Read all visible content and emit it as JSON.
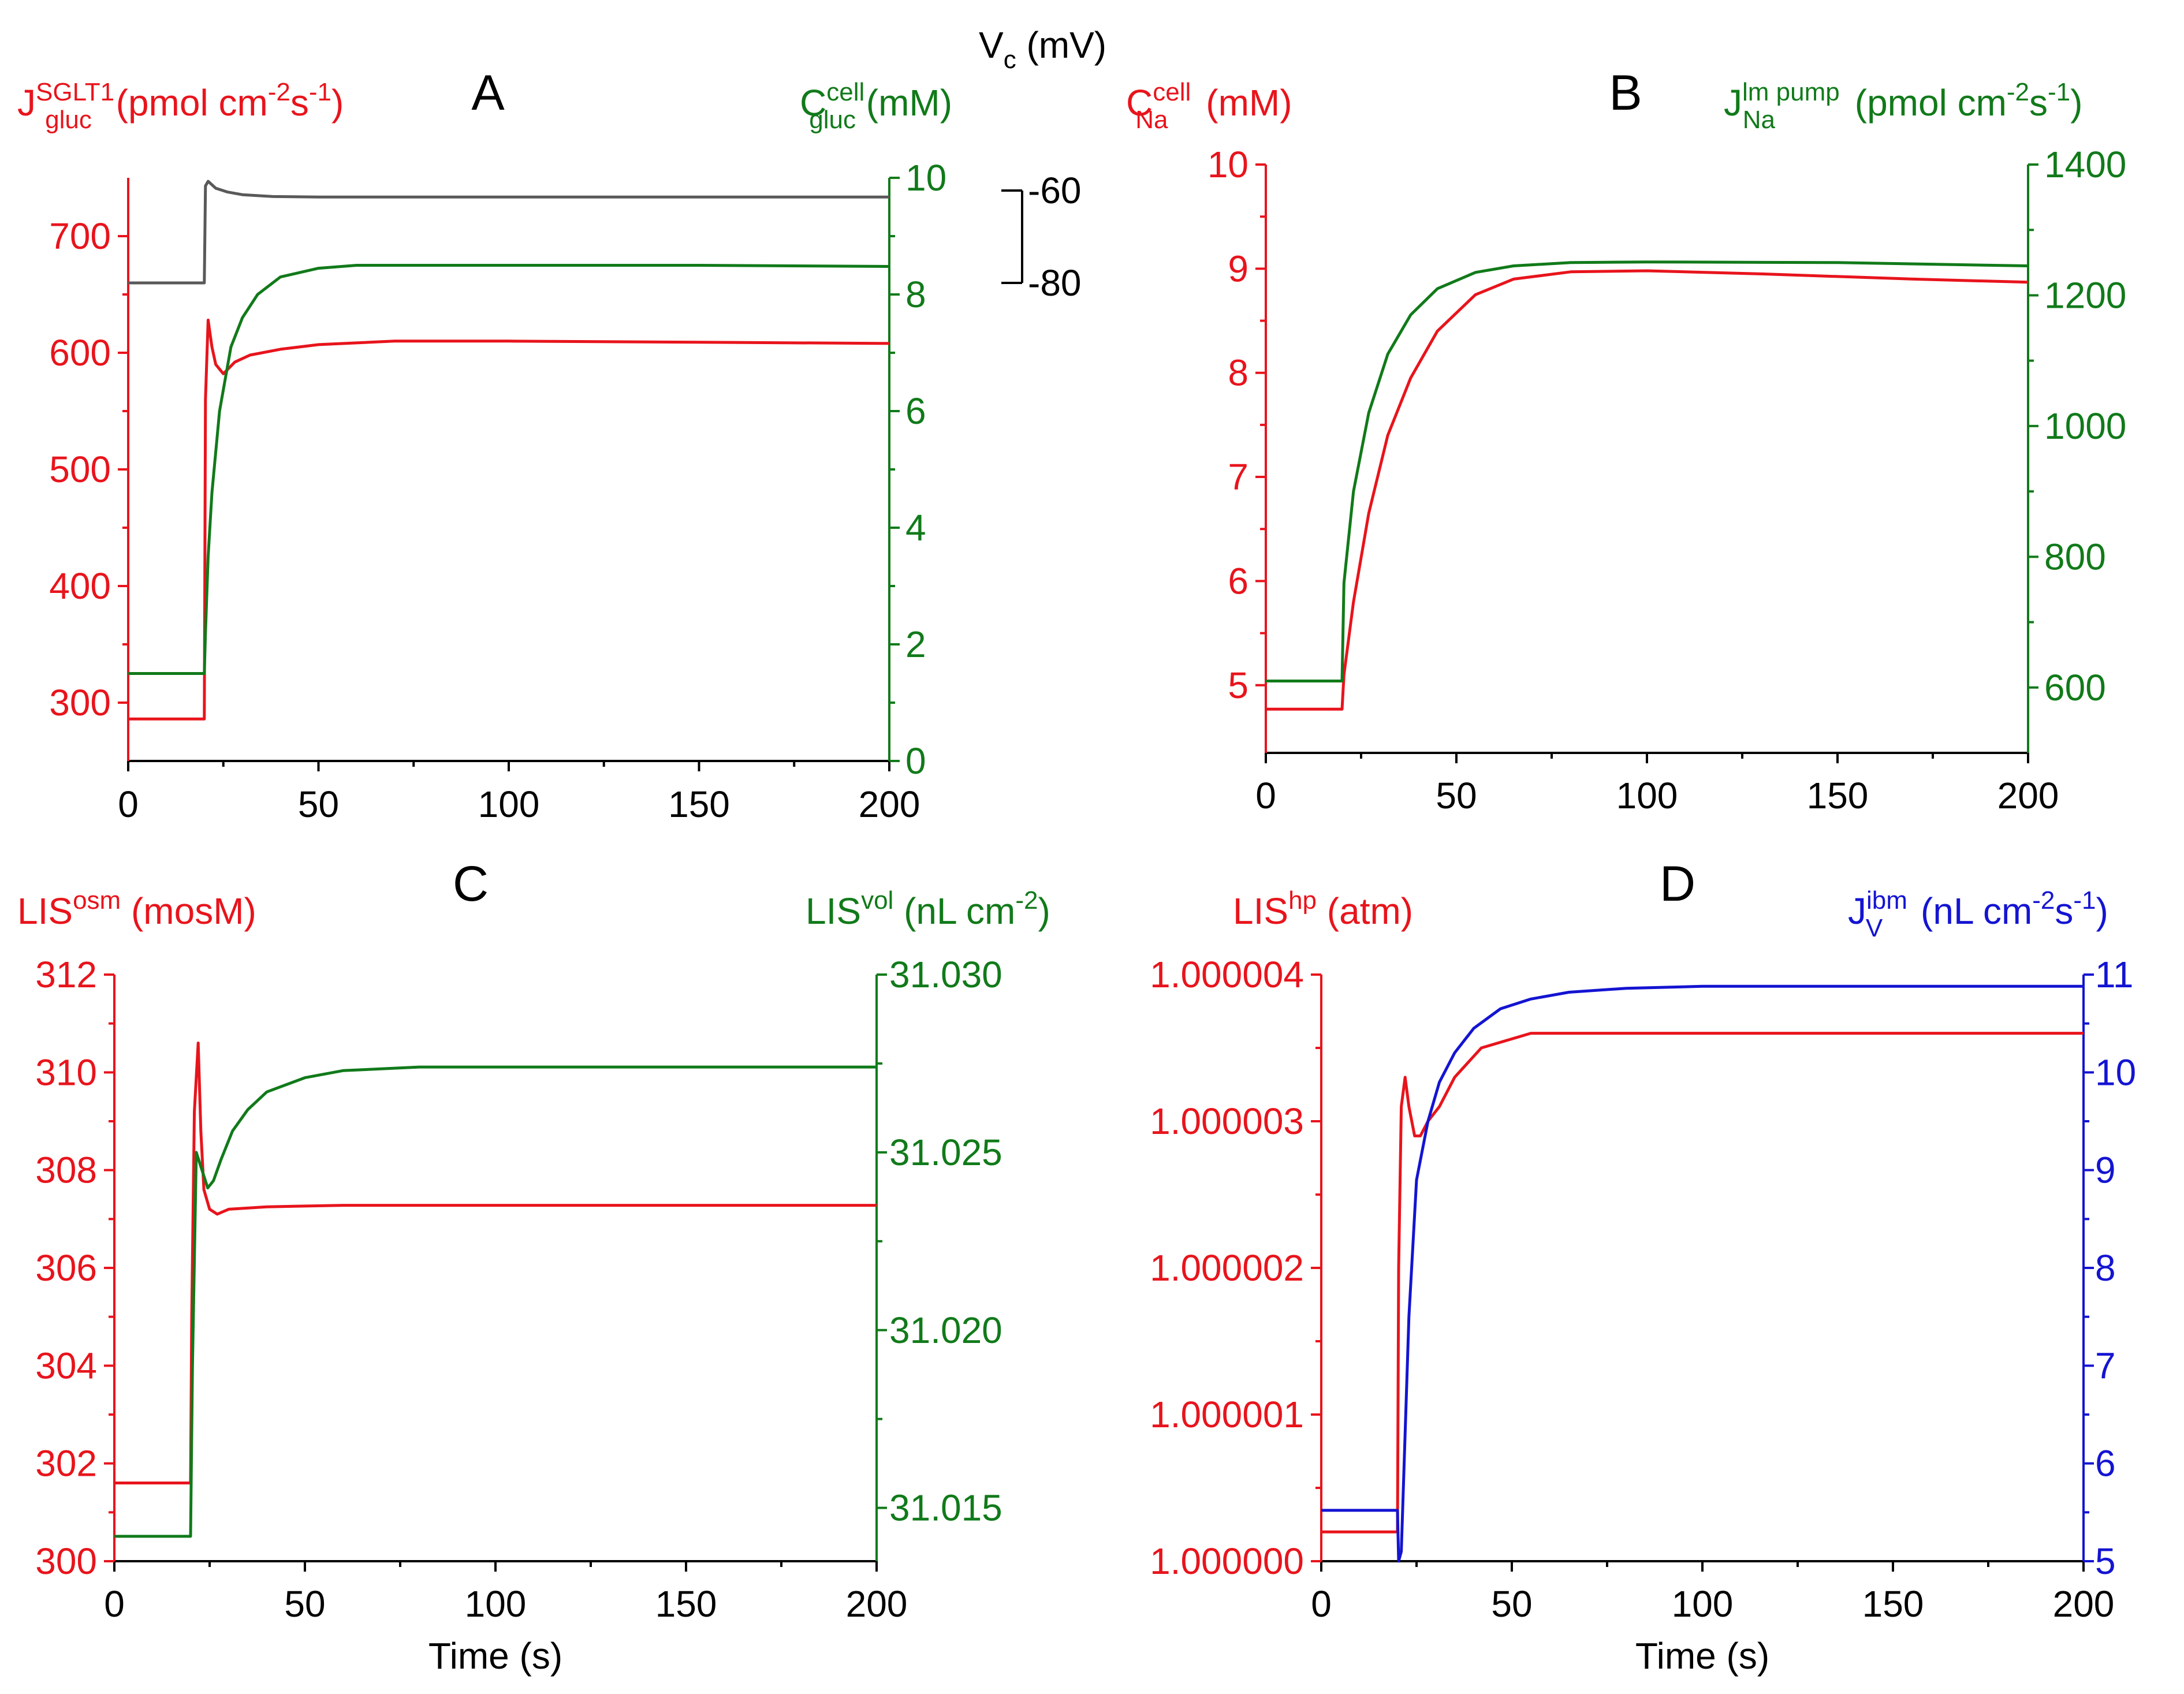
{
  "colors": {
    "red": "#e8141c",
    "green": "#117a1a",
    "blue": "#1414d2",
    "gray": "#595959",
    "black": "#000000"
  },
  "chart_data": [
    {
      "panel": "A",
      "type": "line",
      "x_ticks": [
        "0",
        "50",
        "100",
        "150",
        "200"
      ],
      "xlim": [
        0,
        200
      ],
      "left_axis": {
        "label": {
          "base": "J",
          "sup": "SGLT1",
          "sub": "gluc",
          "unit": "(pmol cm",
          "unit_sup": "-2",
          "unit_mid": "s",
          "unit_sup2": "-1",
          "unit_end": ")"
        },
        "ylim": [
          250,
          750
        ],
        "ticks": [
          300,
          400,
          500,
          600,
          700
        ],
        "tick_labels": [
          "300",
          "400",
          "500",
          "600",
          "700"
        ]
      },
      "right_axis": {
        "label": {
          "base": "C",
          "sup": "cell",
          "sub": "gluc",
          "unit": "(mM)"
        },
        "ylim": [
          0,
          10
        ],
        "ticks": [
          0,
          2,
          4,
          6,
          8,
          10
        ],
        "tick_labels": [
          "0",
          "2",
          "4",
          "6",
          "8",
          "10"
        ]
      },
      "vc_axis": {
        "label": {
          "base": "V",
          "sub": "c",
          "unit": "(mV)"
        },
        "ticks": [
          -60,
          -80
        ],
        "tick_labels": [
          "-60",
          "-80"
        ]
      },
      "series": [
        {
          "axis": "left",
          "color": "red",
          "x": [
            0,
            20,
            20.3,
            21,
            22,
            23,
            25,
            28,
            32,
            40,
            50,
            70,
            100,
            150,
            200
          ],
          "y": [
            286,
            286,
            560,
            628,
            605,
            590,
            582,
            592,
            598,
            603,
            607,
            610,
            610,
            609,
            608
          ]
        },
        {
          "axis": "right",
          "color": "green",
          "x": [
            0,
            20,
            20.3,
            21,
            22,
            24,
            27,
            30,
            34,
            40,
            50,
            60,
            80,
            100,
            150,
            200
          ],
          "y": [
            1.5,
            1.5,
            2.2,
            3.5,
            4.6,
            6.0,
            7.1,
            7.6,
            8.0,
            8.3,
            8.45,
            8.5,
            8.5,
            8.5,
            8.5,
            8.48
          ]
        },
        {
          "axis": "vc",
          "color": "gray",
          "x": [
            0,
            20,
            20.3,
            21,
            23,
            26,
            30,
            38,
            50,
            80,
            120,
            200
          ],
          "y": [
            -80,
            -80,
            -59,
            -58,
            -59.5,
            -60.3,
            -60.9,
            -61.3,
            -61.4,
            -61.4,
            -61.4,
            -61.4
          ]
        }
      ]
    },
    {
      "panel": "B",
      "type": "line",
      "x_ticks": [
        "0",
        "50",
        "100",
        "150",
        "200"
      ],
      "xlim": [
        0,
        200
      ],
      "left_axis": {
        "label": {
          "base": "C",
          "sup": "cell",
          "sub": "Na",
          "unit": "(mM)"
        },
        "ylim": [
          4.35,
          10
        ],
        "ticks": [
          5,
          6,
          7,
          8,
          9,
          10
        ],
        "tick_labels": [
          "5",
          "6",
          "7",
          "8",
          "9",
          "10"
        ]
      },
      "right_axis": {
        "label": {
          "base": "J",
          "sup": "lm pump",
          "sub": "Na",
          "unit": "(pmol cm",
          "unit_sup": "-2",
          "unit_mid": "s",
          "unit_sup2": "-1",
          "unit_end": ")"
        },
        "ylim": [
          500,
          1400
        ],
        "ticks": [
          600,
          800,
          1000,
          1200,
          1400
        ],
        "tick_labels": [
          "600",
          "800",
          "1000",
          "1200",
          "1400"
        ]
      },
      "series": [
        {
          "axis": "left",
          "color": "red",
          "x": [
            0,
            20,
            20.5,
            23,
            27,
            32,
            38,
            45,
            55,
            65,
            80,
            100,
            130,
            170,
            200
          ],
          "y": [
            4.77,
            4.77,
            5.1,
            5.8,
            6.65,
            7.4,
            7.95,
            8.4,
            8.75,
            8.9,
            8.97,
            8.98,
            8.95,
            8.9,
            8.87
          ]
        },
        {
          "axis": "right",
          "color": "green",
          "x": [
            0,
            20,
            20.5,
            23,
            27,
            32,
            38,
            45,
            55,
            65,
            80,
            100,
            150,
            200
          ],
          "y": [
            610,
            610,
            760,
            900,
            1020,
            1110,
            1170,
            1210,
            1235,
            1245,
            1250,
            1251,
            1250,
            1245
          ]
        }
      ]
    },
    {
      "panel": "C",
      "type": "line",
      "x_ticks": [
        "0",
        "50",
        "100",
        "150",
        "200"
      ],
      "xlim": [
        0,
        200
      ],
      "xlabel": "Time (s)",
      "left_axis": {
        "label": {
          "base": "LIS",
          "sup": "osm",
          "unit": "(mosM)"
        },
        "ylim": [
          300,
          312
        ],
        "ticks": [
          300,
          302,
          304,
          306,
          308,
          310,
          312
        ],
        "tick_labels": [
          "300",
          "302",
          "304",
          "306",
          "308",
          "310",
          "312"
        ]
      },
      "right_axis": {
        "label": {
          "base": "LIS",
          "sup": "vol",
          "unit": "(nL cm",
          "unit_sup": "-2",
          "unit_end": ")"
        },
        "ylim": [
          31.0135,
          31.03
        ],
        "ticks": [
          31.015,
          31.02,
          31.025,
          31.03
        ],
        "tick_labels": [
          "31.015",
          "31.020",
          "31.025",
          "31.030"
        ]
      },
      "series": [
        {
          "axis": "left",
          "color": "red",
          "x": [
            0,
            20,
            20.3,
            21,
            22,
            22.7,
            23.5,
            25,
            27,
            30,
            40,
            60,
            100,
            200
          ],
          "y": [
            301.6,
            301.6,
            305.0,
            309.2,
            310.6,
            308.8,
            307.6,
            307.2,
            307.1,
            307.2,
            307.25,
            307.28,
            307.28,
            307.28
          ]
        },
        {
          "axis": "right",
          "color": "green",
          "x": [
            0,
            20,
            20.5,
            21.5,
            23,
            24.5,
            26,
            28,
            31,
            35,
            40,
            50,
            60,
            80,
            100,
            200
          ],
          "y": [
            31.0142,
            31.0142,
            31.019,
            31.025,
            31.0245,
            31.024,
            31.0242,
            31.0248,
            31.0256,
            31.0262,
            31.0267,
            31.0271,
            31.0273,
            31.0274,
            31.0274,
            31.0274
          ]
        }
      ]
    },
    {
      "panel": "D",
      "type": "line",
      "x_ticks": [
        "0",
        "50",
        "100",
        "150",
        "200"
      ],
      "xlim": [
        0,
        200
      ],
      "xlabel": "Time (s)",
      "left_axis": {
        "label": {
          "base": "LIS",
          "sup": "hp",
          "unit": "(atm)"
        },
        "ylim": [
          1.0,
          1.000004
        ],
        "ticks": [
          1.0,
          1.000001,
          1.000002,
          1.000003,
          1.000004
        ],
        "tick_labels": [
          "1.000000",
          "1.000001",
          "1.000002",
          "1.000003",
          "1.000004"
        ]
      },
      "right_axis": {
        "label": {
          "base": "J",
          "sup": "ibm",
          "sub": "V",
          "unit": "(nL cm",
          "unit_sup": "-2",
          "unit_mid": "s",
          "unit_sup2": "-1",
          "unit_end": ")"
        },
        "ylim": [
          5,
          11
        ],
        "ticks": [
          5,
          6,
          7,
          8,
          9,
          10,
          11
        ],
        "tick_labels": [
          "5",
          "6",
          "7",
          "8",
          "9",
          "10",
          "11"
        ]
      },
      "series": [
        {
          "axis": "left",
          "color": "red",
          "x": [
            0,
            20,
            20.3,
            21,
            22,
            23,
            24.5,
            26,
            28,
            31,
            35,
            42,
            55,
            75,
            100,
            200
          ],
          "y": [
            1.0000002,
            1.0000002,
            1.000002,
            1.0000031,
            1.0000033,
            1.0000031,
            1.0000029,
            1.0000029,
            1.000003,
            1.0000031,
            1.0000033,
            1.0000035,
            1.0000036,
            1.0000036,
            1.0000036,
            1.0000036
          ]
        },
        {
          "axis": "right",
          "color": "blue",
          "x": [
            0,
            20,
            20.3,
            21,
            22,
            23,
            25,
            28,
            31,
            35,
            40,
            47,
            55,
            65,
            80,
            100,
            200
          ],
          "y": [
            5.52,
            5.52,
            5.0,
            5.1,
            6.3,
            7.5,
            8.9,
            9.5,
            9.9,
            10.2,
            10.45,
            10.65,
            10.75,
            10.82,
            10.86,
            10.88,
            10.88
          ]
        }
      ]
    }
  ]
}
